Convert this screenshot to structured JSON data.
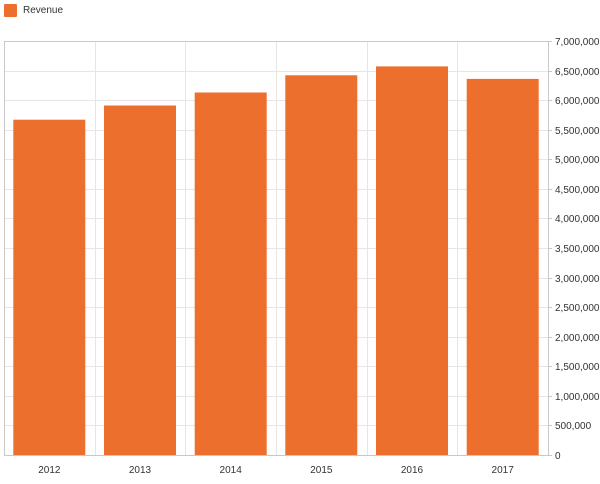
{
  "legend": {
    "label": "Revenue",
    "color": "#EC6F2E"
  },
  "chart_data": {
    "type": "bar",
    "categories": [
      "2012",
      "2013",
      "2014",
      "2015",
      "2016",
      "2017"
    ],
    "series": [
      {
        "name": "Revenue",
        "color": "#EC6F2E",
        "values": [
          5670000,
          5910000,
          6130000,
          6420000,
          6570000,
          6360000
        ]
      }
    ],
    "y_axis": {
      "position": "right",
      "min": 0,
      "max": 7000000,
      "step": 500000,
      "tick_labels": [
        "0",
        "500,000",
        "1,000,000",
        "1,500,000",
        "2,000,000",
        "2,500,000",
        "3,000,000",
        "3,500,000",
        "4,000,000",
        "4,500,000",
        "5,000,000",
        "5,500,000",
        "6,000,000",
        "6,500,000",
        "7,000,000"
      ]
    },
    "grid": true,
    "legend_placement": "top-left"
  }
}
